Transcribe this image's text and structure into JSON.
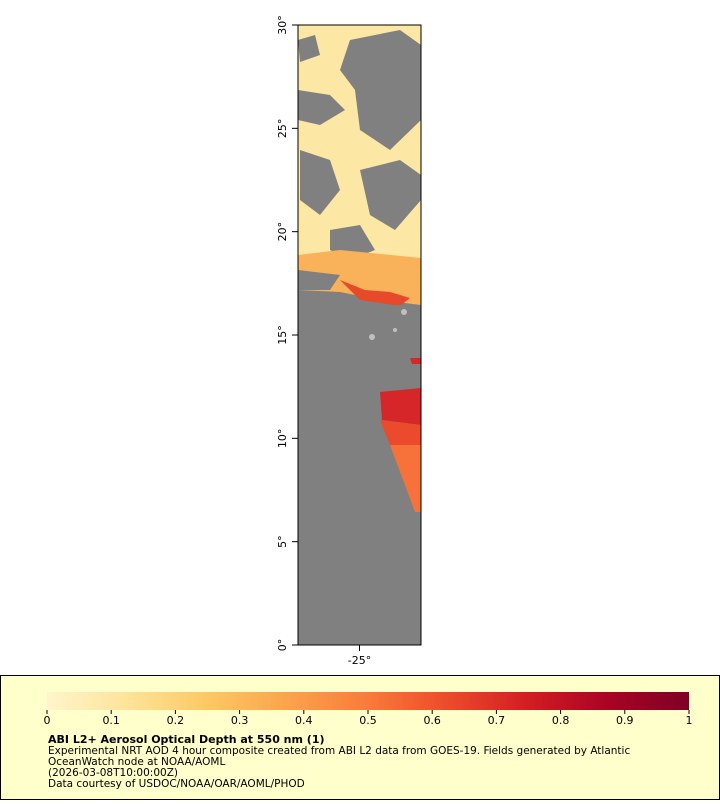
{
  "chart_data": {
    "type": "map",
    "title": "ABI L2+ Aerosol Optical Depth at 550 nm (1)",
    "description": [
      "Experimental NRT AOD 4 hour composite created from ABI L2 data from GOES-19. Fields generated by Atlantic",
      "OceanWatch node at NOAA/AOML",
      "(2026-03-08T10:00:00Z)",
      "Data courtesy of USDOC/NOAA/OAR/AOML/PHOD"
    ],
    "xlim": [
      -28,
      -22
    ],
    "xticks": [
      {
        "value": -25,
        "label": "-25°"
      }
    ],
    "ylim": [
      0,
      30
    ],
    "yticks": [
      {
        "value": 0,
        "label": "0°"
      },
      {
        "value": 5,
        "label": "5°"
      },
      {
        "value": 10,
        "label": "10°"
      },
      {
        "value": 15,
        "label": "15°"
      },
      {
        "value": 20,
        "label": "20°"
      },
      {
        "value": 25,
        "label": "25°"
      },
      {
        "value": 30,
        "label": "30°"
      }
    ],
    "colorbar": {
      "lim": [
        0,
        1
      ],
      "ticks": [
        0,
        0.1,
        0.2,
        0.3,
        0.4,
        0.5,
        0.6,
        0.7,
        0.8,
        0.9,
        1
      ],
      "colors": [
        "#fff5cc",
        "#fee39a",
        "#fdc864",
        "#fca34c",
        "#f97b3a",
        "#eb4b2a",
        "#d21d22",
        "#a80424",
        "#7f0026"
      ]
    }
  }
}
